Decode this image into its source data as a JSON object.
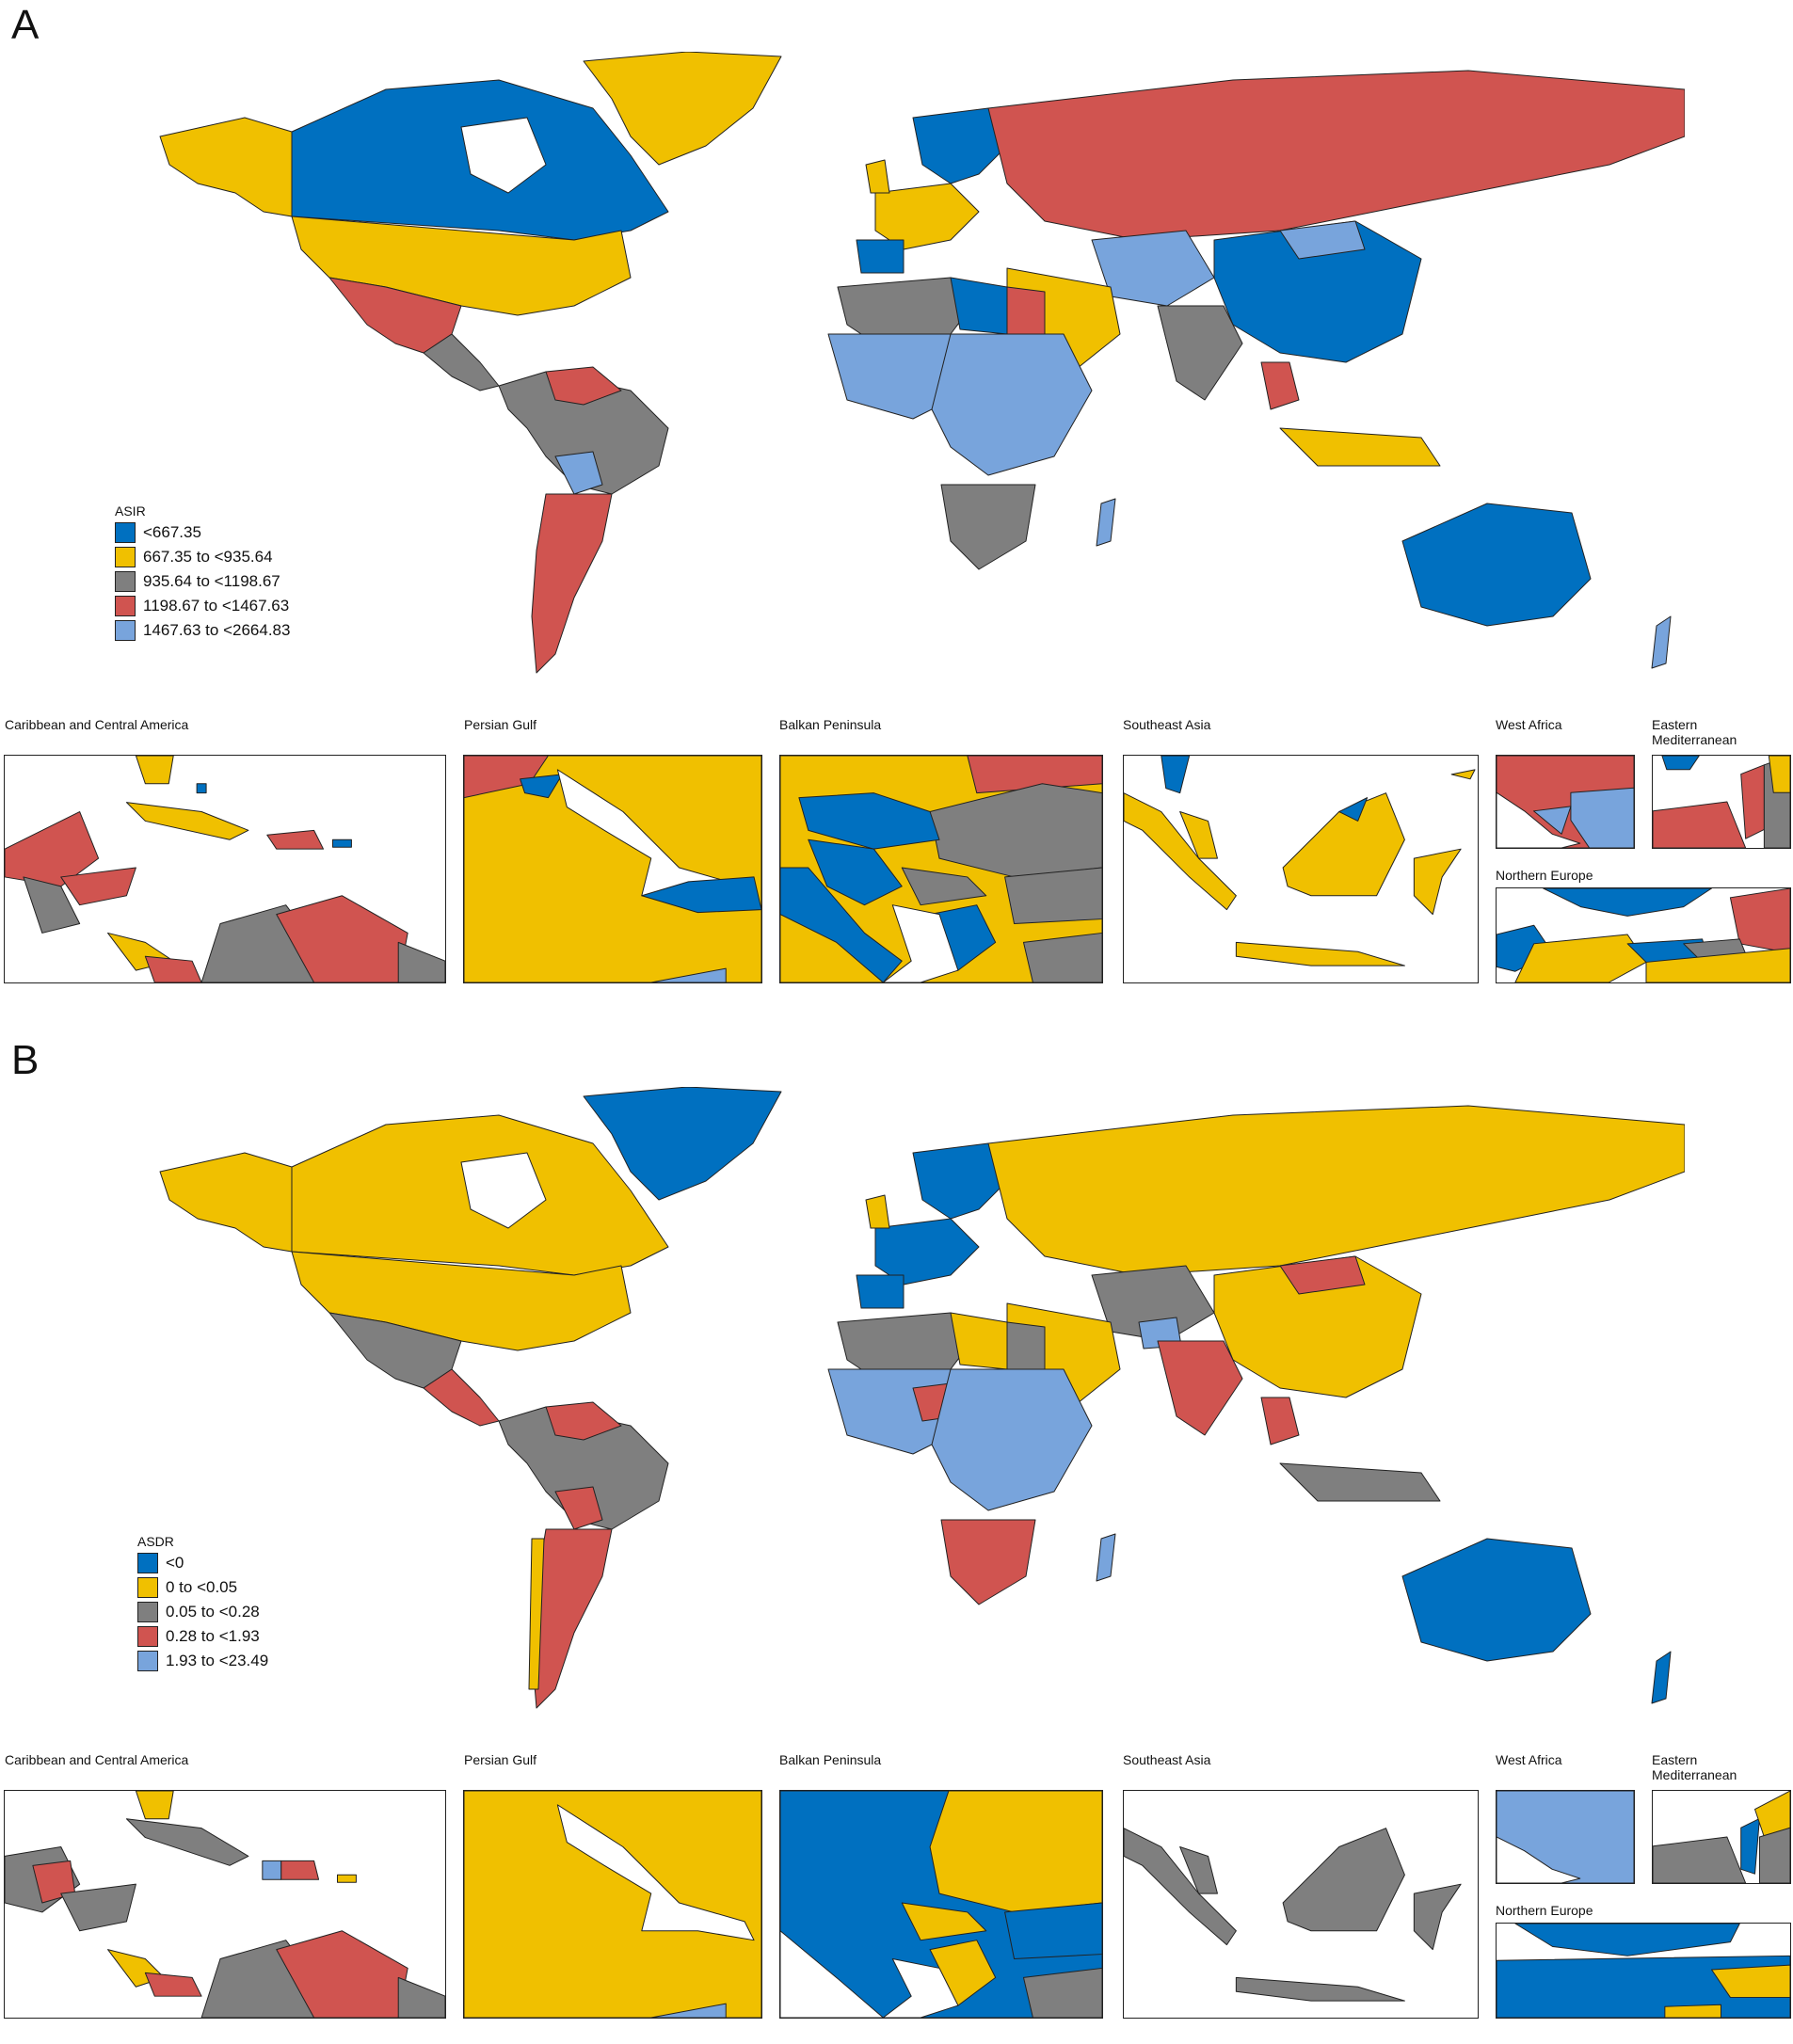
{
  "panels": [
    {
      "letter": "A",
      "legend": {
        "title": "ASIR",
        "entries": [
          {
            "label": "<667.35",
            "color": "#0070c0"
          },
          {
            "label": "667.35 to <935.64",
            "color": "#f0c000"
          },
          {
            "label": "935.64 to <1198.67",
            "color": "#7f7f7f"
          },
          {
            "label": "1198.67 to <1467.63",
            "color": "#d05450"
          },
          {
            "label": "1467.63 to <2664.83",
            "color": "#78a4dc"
          }
        ]
      },
      "insets": [
        "Caribbean and Central America",
        "Persian Gulf",
        "Balkan Peninsula",
        "Southeast Asia",
        "West Africa",
        "Eastern Mediterranean",
        "Northern Europe"
      ]
    },
    {
      "letter": "B",
      "legend": {
        "title": "ASDR",
        "entries": [
          {
            "label": "<0",
            "color": "#0070c0"
          },
          {
            "label": "0 to <0.05",
            "color": "#f0c000"
          },
          {
            "label": "0.05 to <0.28",
            "color": "#7f7f7f"
          },
          {
            "label": "0.28 to <1.93",
            "color": "#d05450"
          },
          {
            "label": "1.93 to <23.49",
            "color": "#78a4dc"
          }
        ]
      },
      "insets": [
        "Caribbean and Central America",
        "Persian Gulf",
        "Balkan Peninsula",
        "Southeast Asia",
        "West Africa",
        "Eastern Mediterranean",
        "Northern Europe"
      ]
    }
  ]
}
